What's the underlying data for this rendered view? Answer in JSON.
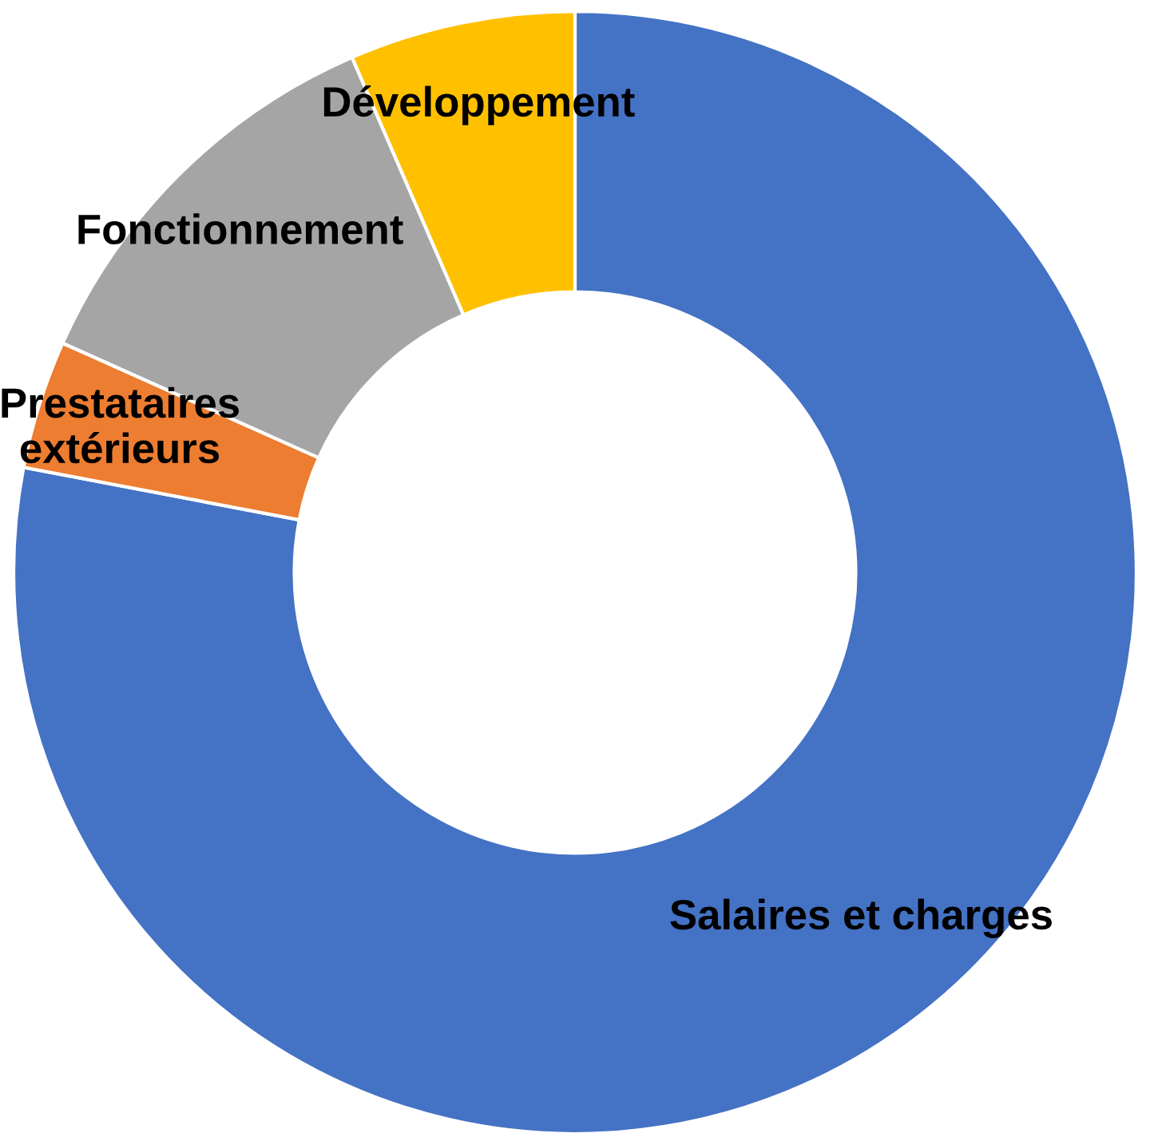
{
  "chart_data": {
    "type": "donut",
    "categories": [
      "Salaires et charges",
      "Prestataires extérieurs",
      "Fonctionnement",
      "Développement"
    ],
    "values": [
      78,
      3.7,
      11.8,
      6.5
    ],
    "colors": [
      "#4472c4",
      "#ed7d31",
      "#a5a5a5",
      "#ffc000"
    ],
    "legend": false
  }
}
